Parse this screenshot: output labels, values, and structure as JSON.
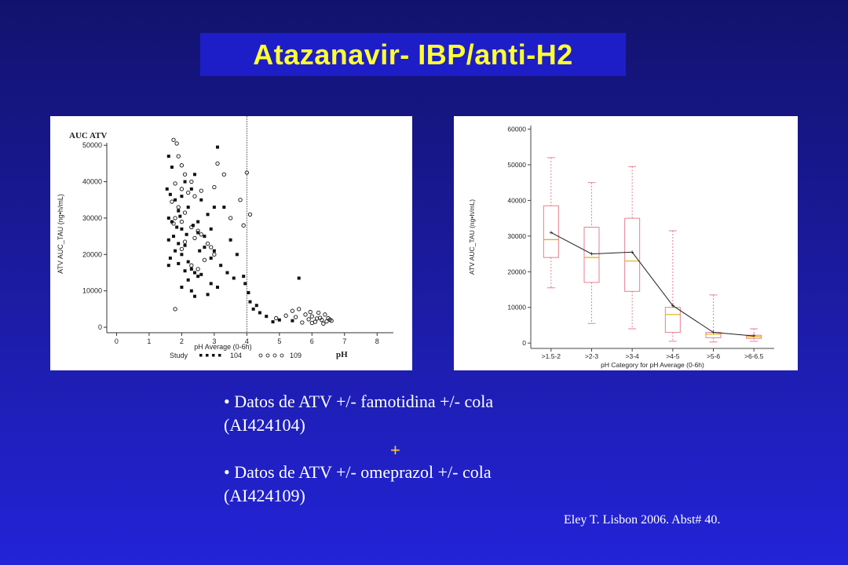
{
  "title": "Atazanavir- IBP/anti-H2",
  "bullets": [
    {
      "line1": "• Datos de ATV +/- famotidina +/- cola",
      "line2": "(AI424104)"
    },
    {
      "line1": "• Datos de ATV +/- omeprazol +/- cola",
      "line2": "(AI424109)"
    }
  ],
  "plus_sign": "+",
  "citation": "Eley T. Lisbon 2006. Abst# 40.",
  "chart_data": [
    {
      "type": "scatter",
      "title": "",
      "overlay_labels": {
        "y": "AUC ATV",
        "x": "pH"
      },
      "xlabel": "pH Average (0-6h)",
      "ylabel": "ATV AUC_TAU (ng•h/mL)",
      "xlim": [
        -0.3,
        8.5
      ],
      "ylim": [
        -1500,
        55000
      ],
      "xticks": [
        0,
        1,
        2,
        3,
        4,
        5,
        6,
        7,
        8
      ],
      "yticks": [
        0,
        10000,
        20000,
        30000,
        40000,
        50000
      ],
      "reference_line_x": 4,
      "legend": {
        "title": "Study",
        "placement": "bottom",
        "entries": [
          {
            "name": "104",
            "marker": "filled-square"
          },
          {
            "name": "109",
            "marker": "open-circle"
          }
        ]
      },
      "series": [
        {
          "name": "104",
          "marker": "filled-square",
          "points": [
            [
              1.6,
              47000
            ],
            [
              1.7,
              44000
            ],
            [
              1.55,
              38000
            ],
            [
              1.65,
              36500
            ],
            [
              1.8,
              35000
            ],
            [
              1.9,
              32000
            ],
            [
              1.6,
              30000
            ],
            [
              1.7,
              29000
            ],
            [
              1.85,
              27500
            ],
            [
              2.0,
              27000
            ],
            [
              1.75,
              25000
            ],
            [
              1.6,
              24000
            ],
            [
              1.9,
              23000
            ],
            [
              2.1,
              22500
            ],
            [
              1.8,
              21000
            ],
            [
              2.0,
              20000
            ],
            [
              1.65,
              19000
            ],
            [
              2.2,
              18000
            ],
            [
              1.9,
              17500
            ],
            [
              1.6,
              17000
            ],
            [
              2.3,
              16000
            ],
            [
              2.1,
              15500
            ],
            [
              2.4,
              15000
            ],
            [
              2.5,
              14000
            ],
            [
              2.6,
              14500
            ],
            [
              2.2,
              13000
            ],
            [
              2.0,
              11000
            ],
            [
              2.3,
              10000
            ],
            [
              2.8,
              9000
            ],
            [
              2.4,
              8500
            ],
            [
              2.7,
              25000
            ],
            [
              2.9,
              27000
            ],
            [
              2.5,
              29000
            ],
            [
              2.8,
              31000
            ],
            [
              3.0,
              33000
            ],
            [
              2.6,
              35000
            ],
            [
              2.3,
              38000
            ],
            [
              2.1,
              40000
            ],
            [
              2.4,
              42000
            ],
            [
              3.1,
              49500
            ],
            [
              2.7,
              22000
            ],
            [
              3.0,
              21000
            ],
            [
              2.9,
              19000
            ],
            [
              3.2,
              17000
            ],
            [
              3.4,
              15000
            ],
            [
              3.6,
              13500
            ],
            [
              3.3,
              33000
            ],
            [
              3.5,
              24000
            ],
            [
              2.2,
              33000
            ],
            [
              2.5,
              26000
            ],
            [
              2.0,
              36000
            ],
            [
              1.95,
              30500
            ],
            [
              2.35,
              28000
            ],
            [
              2.15,
              25500
            ],
            [
              2.55,
              21000
            ],
            [
              3.7,
              20000
            ],
            [
              3.9,
              14000
            ],
            [
              3.95,
              12000
            ],
            [
              4.05,
              9500
            ],
            [
              4.1,
              7000
            ],
            [
              4.3,
              6000
            ],
            [
              4.4,
              4000
            ],
            [
              4.6,
              3000
            ],
            [
              5.0,
              2000
            ],
            [
              5.4,
              1800
            ],
            [
              5.6,
              13500
            ],
            [
              4.8,
              1500
            ],
            [
              4.2,
              5000
            ],
            [
              2.9,
              12000
            ],
            [
              3.1,
              11000
            ]
          ]
        },
        {
          "name": "109",
          "marker": "open-circle",
          "points": [
            [
              1.75,
              51500
            ],
            [
              1.85,
              50500
            ],
            [
              1.9,
              47000
            ],
            [
              2.0,
              44500
            ],
            [
              2.1,
              42000
            ],
            [
              2.3,
              40000
            ],
            [
              1.8,
              39500
            ],
            [
              2.0,
              38000
            ],
            [
              2.2,
              37000
            ],
            [
              2.4,
              36000
            ],
            [
              1.7,
              34500
            ],
            [
              1.9,
              33000
            ],
            [
              2.1,
              31500
            ],
            [
              1.8,
              30000
            ],
            [
              2.0,
              29000
            ],
            [
              1.75,
              28500
            ],
            [
              2.3,
              27500
            ],
            [
              2.5,
              26500
            ],
            [
              2.6,
              25500
            ],
            [
              2.4,
              24500
            ],
            [
              2.1,
              23500
            ],
            [
              2.8,
              23000
            ],
            [
              2.9,
              22000
            ],
            [
              3.0,
              20000
            ],
            [
              2.7,
              18500
            ],
            [
              2.3,
              17000
            ],
            [
              2.5,
              16000
            ],
            [
              3.1,
              45000
            ],
            [
              3.3,
              42000
            ],
            [
              3.0,
              38500
            ],
            [
              2.6,
              37500
            ],
            [
              3.5,
              30000
            ],
            [
              3.8,
              35000
            ],
            [
              4.0,
              42500
            ],
            [
              4.1,
              31000
            ],
            [
              3.9,
              28000
            ],
            [
              1.8,
              5000
            ],
            [
              5.4,
              4500
            ],
            [
              5.6,
              5000
            ],
            [
              5.8,
              3500
            ],
            [
              6.0,
              3000
            ],
            [
              6.2,
              4000
            ],
            [
              6.4,
              3500
            ],
            [
              6.5,
              2500
            ],
            [
              6.3,
              2000
            ],
            [
              6.1,
              1500
            ],
            [
              6.6,
              1800
            ],
            [
              5.9,
              2200
            ],
            [
              6.0,
              1200
            ],
            [
              6.35,
              1000
            ],
            [
              5.5,
              2800
            ],
            [
              4.9,
              2500
            ],
            [
              5.2,
              3200
            ],
            [
              6.45,
              1600
            ],
            [
              6.25,
              2600
            ],
            [
              5.95,
              4200
            ],
            [
              6.15,
              2400
            ],
            [
              6.55,
              2100
            ],
            [
              5.7,
              1300
            ],
            [
              2.0,
              21500
            ]
          ]
        }
      ]
    },
    {
      "type": "box",
      "title": "",
      "xlabel": "pH Category for pH Average (0-6h)",
      "ylabel": "ATV AUC_TAU (ng•h/mL)",
      "ylim": [
        -1500,
        61000
      ],
      "yticks": [
        0,
        10000,
        20000,
        30000,
        40000,
        50000,
        60000
      ],
      "categories": [
        ">1.5-2",
        ">2-3",
        ">3-4",
        ">4-5",
        ">5-6",
        ">6-6.5"
      ],
      "boxes": [
        {
          "min": 15500,
          "q1": 24000,
          "median": 29000,
          "q3": 38500,
          "max": 52000,
          "mean": 31000
        },
        {
          "min": 5500,
          "q1": 17000,
          "median": 24000,
          "q3": 32500,
          "max": 45000,
          "mean": 25000
        },
        {
          "min": 4000,
          "q1": 14500,
          "median": 23000,
          "q3": 35000,
          "max": 49500,
          "mean": 25500
        },
        {
          "min": 500,
          "q1": 3000,
          "median": 8000,
          "q3": 10000,
          "max": 31500,
          "mean": 10500
        },
        {
          "min": 300,
          "q1": 1500,
          "median": 2500,
          "q3": 3000,
          "max": 13500,
          "mean": 3000
        },
        {
          "min": 500,
          "q1": 1300,
          "median": 1800,
          "q3": 2200,
          "max": 4000,
          "mean": 2000
        }
      ]
    }
  ]
}
